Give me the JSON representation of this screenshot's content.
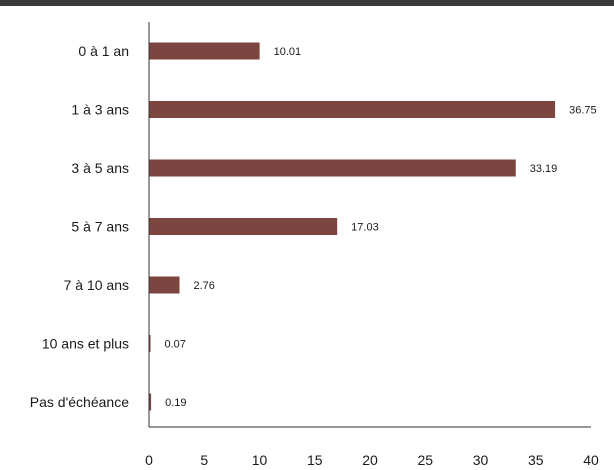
{
  "chart_data": {
    "type": "bar",
    "orientation": "horizontal",
    "categories": [
      "0 à 1 an",
      "1 à 3 ans",
      "3 à 5 ans",
      "5 à 7 ans",
      "7 à 10 ans",
      "10 ans et plus",
      "Pas d'échéance"
    ],
    "values": [
      10.01,
      36.75,
      33.19,
      17.03,
      2.76,
      0.07,
      0.19
    ],
    "data_labels": [
      "10.01",
      "36.75",
      "33.19",
      "17.03",
      "2.76",
      "0.07",
      "0.19"
    ],
    "xlim": [
      0,
      40
    ],
    "xticks": [
      "0",
      "5",
      "10",
      "15",
      "20",
      "25",
      "30",
      "35",
      "40"
    ],
    "title": "",
    "xlabel": "",
    "ylabel": "",
    "grid": false,
    "legend": "none",
    "bar_color": "#7d4540",
    "axis_color": "#333333"
  }
}
